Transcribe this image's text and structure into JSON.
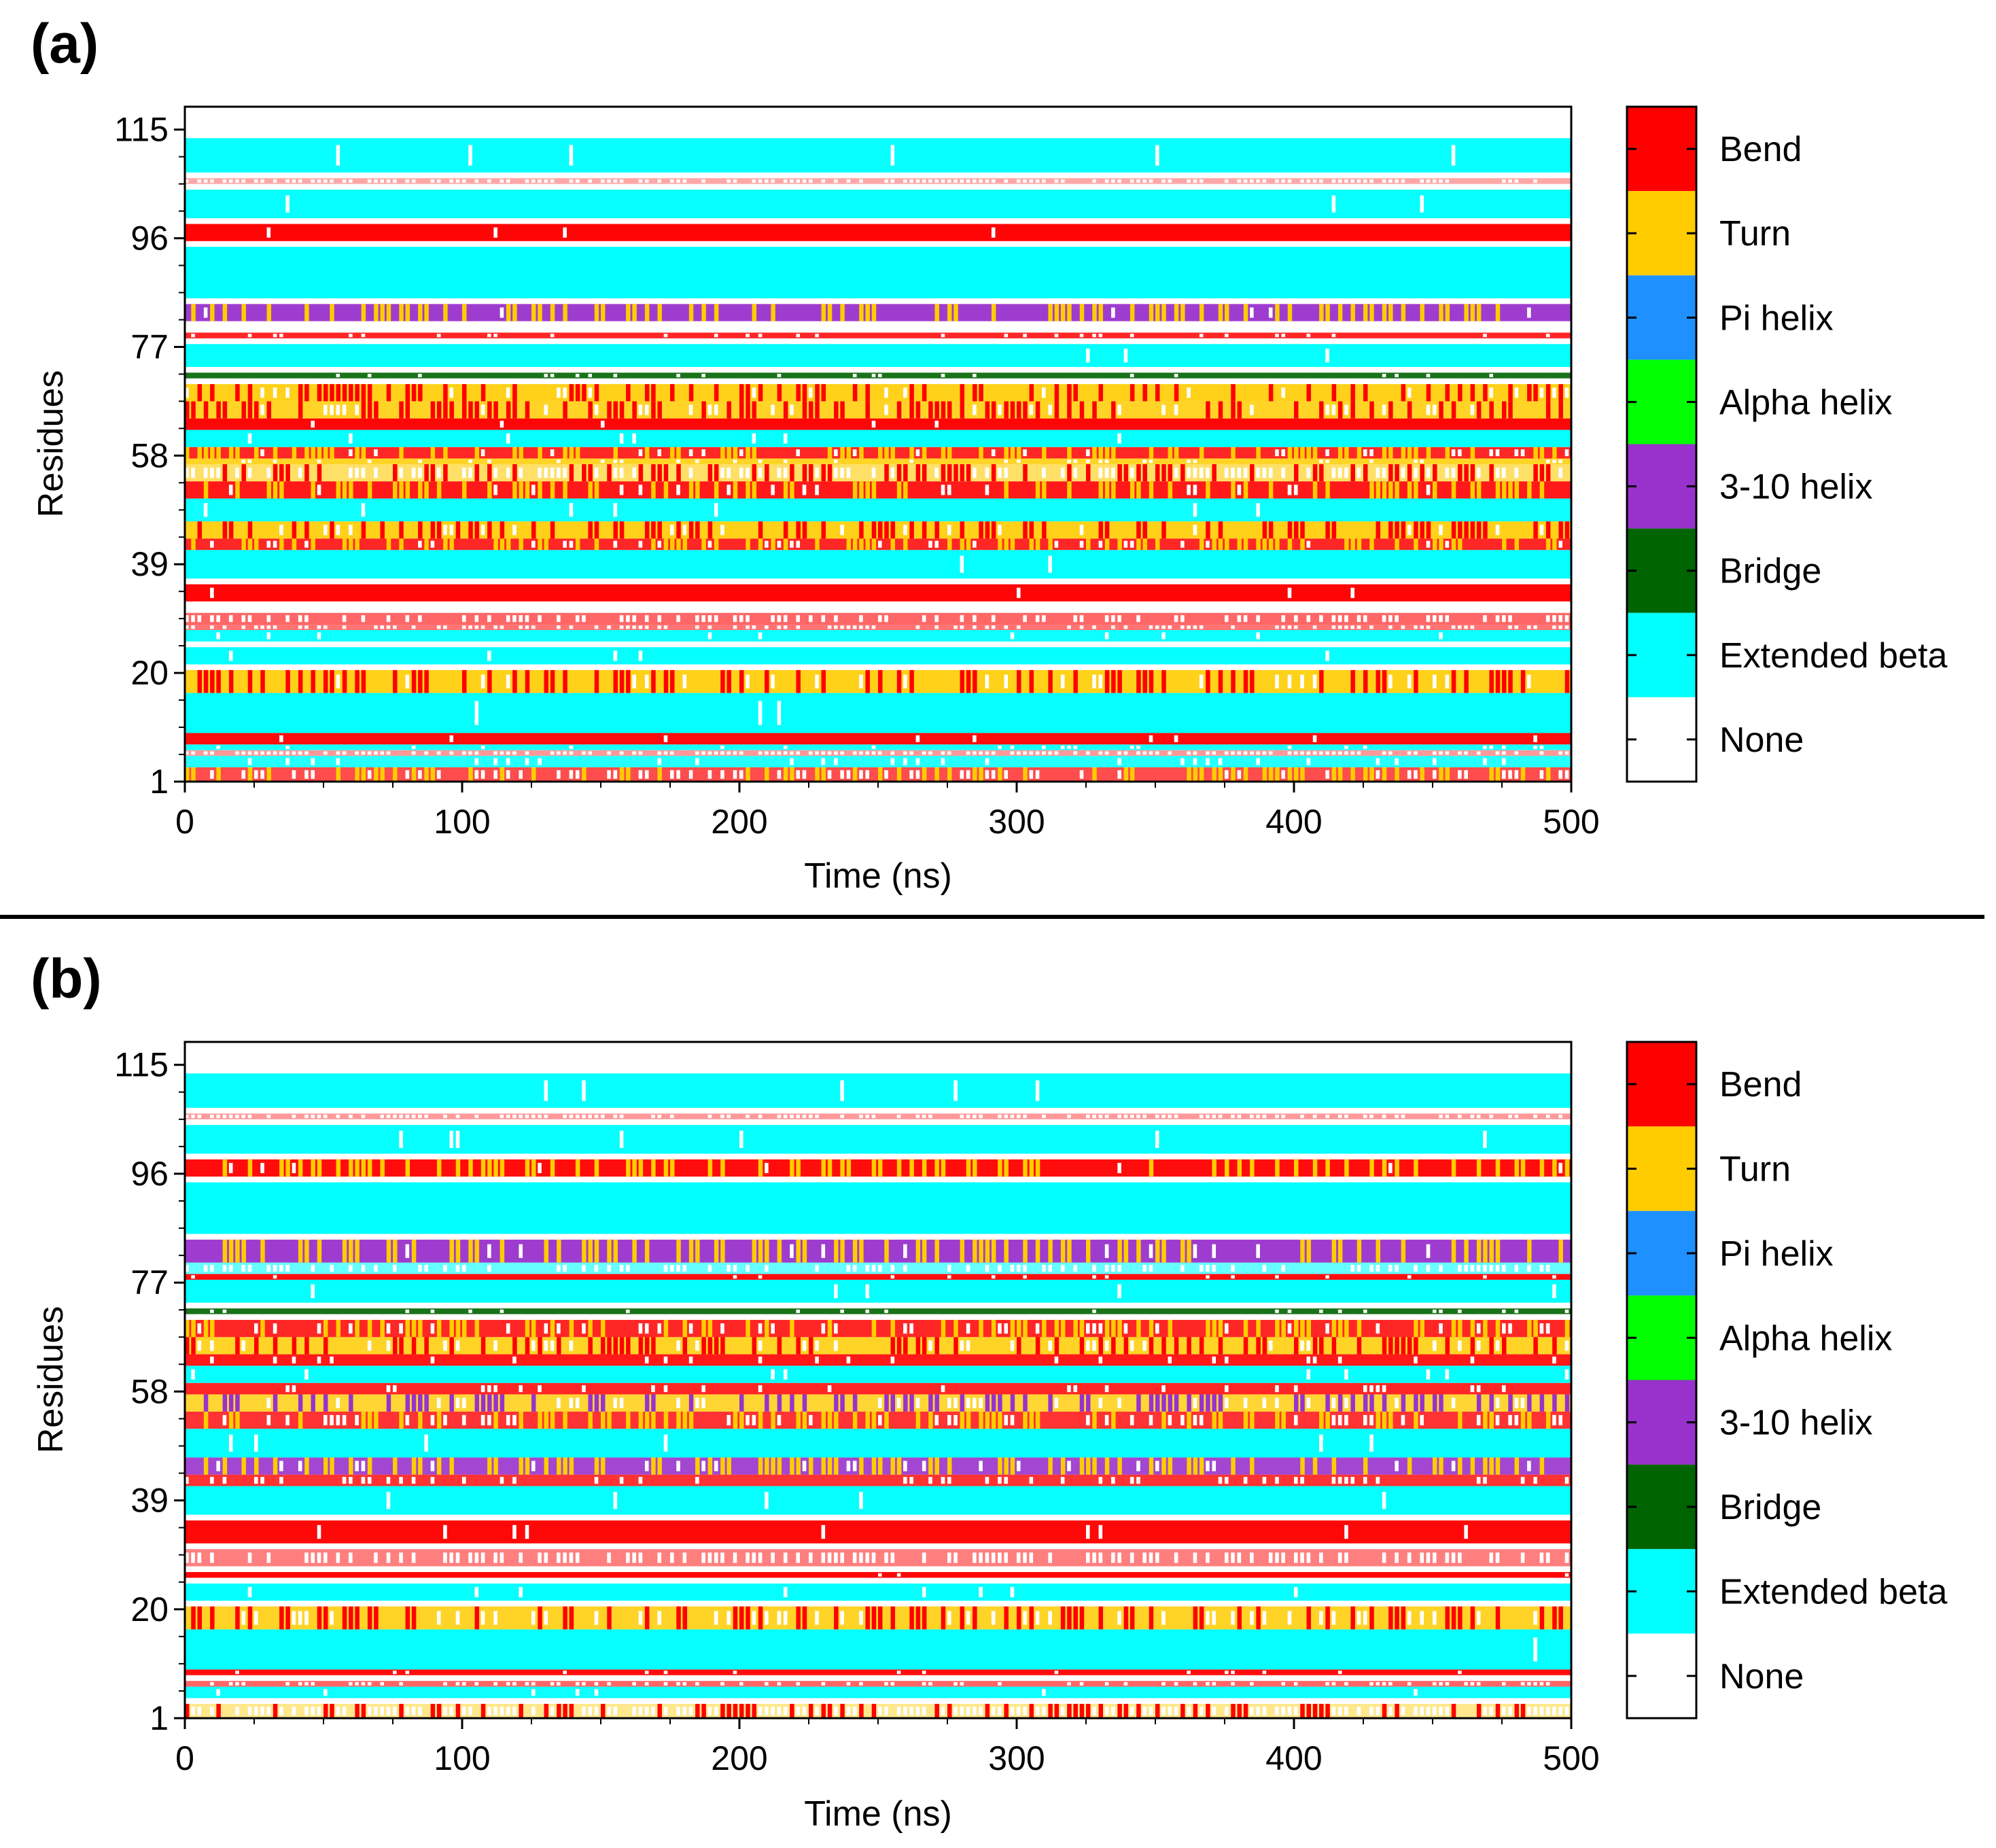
{
  "chart_data": [
    {
      "panel_label": "(a)",
      "type": "heatmap",
      "title": "",
      "xlabel": "Time (ns)",
      "ylabel": "Residues",
      "xlim": [
        0,
        500
      ],
      "ylim": [
        1,
        119
      ],
      "x_ticks": [
        "0",
        "100",
        "200",
        "300",
        "400",
        "500"
      ],
      "y_ticks": [
        "1",
        "20",
        "39",
        "58",
        "77",
        "96",
        "115"
      ],
      "legend": [
        "Bend",
        "Turn",
        "Pi helix",
        "Alpha helix",
        "3-10 helix",
        "Bridge",
        "Extended beta",
        "None"
      ],
      "bands": [
        {
          "from": 1,
          "to": 3,
          "state": "Bend",
          "density": 0.7,
          "mix": "Turn"
        },
        {
          "from": 4,
          "to": 5,
          "state": "Extended beta",
          "density": 0.85
        },
        {
          "from": 6,
          "to": 6,
          "state": "Bend",
          "density": 0.4
        },
        {
          "from": 7,
          "to": 7,
          "state": "Extended beta",
          "density": 0.9
        },
        {
          "from": 8,
          "to": 9,
          "state": "Bend",
          "density": 0.95
        },
        {
          "from": 10,
          "to": 16,
          "state": "Extended beta",
          "density": 0.98
        },
        {
          "from": 17,
          "to": 20,
          "state": "Turn",
          "density": 0.9,
          "mix": "Bend"
        },
        {
          "from": 21,
          "to": 21,
          "state": "None",
          "density": 0
        },
        {
          "from": 22,
          "to": 24,
          "state": "Extended beta",
          "density": 0.98
        },
        {
          "from": 25,
          "to": 25,
          "state": "None",
          "density": 0
        },
        {
          "from": 26,
          "to": 27,
          "state": "Extended beta",
          "density": 0.95
        },
        {
          "from": 28,
          "to": 28,
          "state": "Bend",
          "density": 0.55
        },
        {
          "from": 29,
          "to": 30,
          "state": "Bend",
          "density": 0.6
        },
        {
          "from": 31,
          "to": 32,
          "state": "None",
          "density": 0
        },
        {
          "from": 33,
          "to": 35,
          "state": "Bend",
          "density": 0.98
        },
        {
          "from": 36,
          "to": 36,
          "state": "None",
          "density": 0
        },
        {
          "from": 37,
          "to": 41,
          "state": "Extended beta",
          "density": 0.98
        },
        {
          "from": 42,
          "to": 43,
          "state": "Bend",
          "density": 0.85,
          "mix": "Turn"
        },
        {
          "from": 44,
          "to": 46,
          "state": "Turn",
          "density": 0.9,
          "mix": "Bend"
        },
        {
          "from": 47,
          "to": 50,
          "state": "Extended beta",
          "density": 0.95
        },
        {
          "from": 51,
          "to": 53,
          "state": "Bend",
          "density": 0.9,
          "mix": "Turn"
        },
        {
          "from": 54,
          "to": 56,
          "state": "Turn",
          "density": 0.6,
          "mix": "Bend"
        },
        {
          "from": 57,
          "to": 57,
          "state": "Turn",
          "density": 0.85
        },
        {
          "from": 58,
          "to": 59,
          "state": "Bend",
          "density": 0.85,
          "mix": "Turn"
        },
        {
          "from": 60,
          "to": 62,
          "state": "Extended beta",
          "density": 0.98
        },
        {
          "from": 63,
          "to": 64,
          "state": "Bend",
          "density": 0.98
        },
        {
          "from": 65,
          "to": 67,
          "state": "Turn",
          "density": 0.85,
          "mix": "Bend"
        },
        {
          "from": 68,
          "to": 70,
          "state": "Turn",
          "density": 0.9,
          "mix": "Bend"
        },
        {
          "from": 71,
          "to": 71,
          "state": "None",
          "density": 0
        },
        {
          "from": 72,
          "to": 72,
          "state": "Bridge",
          "density": 0.9
        },
        {
          "from": 73,
          "to": 73,
          "state": "None",
          "density": 0
        },
        {
          "from": 74,
          "to": 77,
          "state": "Extended beta",
          "density": 0.98
        },
        {
          "from": 78,
          "to": 78,
          "state": "None",
          "density": 0
        },
        {
          "from": 79,
          "to": 79,
          "state": "Bend",
          "density": 0.85
        },
        {
          "from": 80,
          "to": 81,
          "state": "None",
          "density": 0
        },
        {
          "from": 82,
          "to": 84,
          "state": "3-10 helix",
          "density": 0.95,
          "mix": "Turn"
        },
        {
          "from": 85,
          "to": 85,
          "state": "None",
          "density": 0
        },
        {
          "from": 86,
          "to": 94,
          "state": "Extended beta",
          "density": 1
        },
        {
          "from": 95,
          "to": 95,
          "state": "None",
          "density": 0
        },
        {
          "from": 96,
          "to": 98,
          "state": "Bend",
          "density": 0.98
        },
        {
          "from": 99,
          "to": 99,
          "state": "None",
          "density": 0
        },
        {
          "from": 100,
          "to": 104,
          "state": "Extended beta",
          "density": 0.98
        },
        {
          "from": 105,
          "to": 105,
          "state": "None",
          "density": 0
        },
        {
          "from": 106,
          "to": 106,
          "state": "Bend",
          "density": 0.35
        },
        {
          "from": 107,
          "to": 107,
          "state": "None",
          "density": 0
        },
        {
          "from": 108,
          "to": 113,
          "state": "Extended beta",
          "density": 0.97
        },
        {
          "from": 114,
          "to": 116,
          "state": "None",
          "density": 0
        }
      ]
    },
    {
      "panel_label": "(b)",
      "type": "heatmap",
      "title": "",
      "xlabel": "Time (ns)",
      "ylabel": "Residues",
      "xlim": [
        0,
        500
      ],
      "ylim": [
        1,
        119
      ],
      "x_ticks": [
        "0",
        "100",
        "200",
        "300",
        "400",
        "500"
      ],
      "y_ticks": [
        "1",
        "20",
        "39",
        "58",
        "77",
        "96",
        "115"
      ],
      "legend": [
        "Bend",
        "Turn",
        "Pi helix",
        "Alpha helix",
        "3-10 helix",
        "Bridge",
        "Extended beta",
        "None"
      ],
      "bands": [
        {
          "from": 1,
          "to": 3,
          "state": "Turn",
          "density": 0.45,
          "mix": "Bend"
        },
        {
          "from": 4,
          "to": 4,
          "state": "None",
          "density": 0
        },
        {
          "from": 5,
          "to": 6,
          "state": "Extended beta",
          "density": 0.95
        },
        {
          "from": 7,
          "to": 7,
          "state": "Bend",
          "density": 0.6
        },
        {
          "from": 8,
          "to": 8,
          "state": "None",
          "density": 0
        },
        {
          "from": 9,
          "to": 9,
          "state": "Bend",
          "density": 0.95
        },
        {
          "from": 10,
          "to": 16,
          "state": "Extended beta",
          "density": 0.98
        },
        {
          "from": 17,
          "to": 20,
          "state": "Turn",
          "density": 0.85,
          "mix": "Bend"
        },
        {
          "from": 21,
          "to": 21,
          "state": "None",
          "density": 0
        },
        {
          "from": 22,
          "to": 24,
          "state": "Extended beta",
          "density": 0.98
        },
        {
          "from": 25,
          "to": 25,
          "state": "None",
          "density": 0
        },
        {
          "from": 26,
          "to": 26,
          "state": "Bend",
          "density": 0.98
        },
        {
          "from": 27,
          "to": 27,
          "state": "None",
          "density": 0
        },
        {
          "from": 28,
          "to": 30,
          "state": "Bend",
          "density": 0.5
        },
        {
          "from": 31,
          "to": 31,
          "state": "None",
          "density": 0
        },
        {
          "from": 32,
          "to": 35,
          "state": "Bend",
          "density": 0.97
        },
        {
          "from": 36,
          "to": 36,
          "state": "None",
          "density": 0
        },
        {
          "from": 37,
          "to": 41,
          "state": "Extended beta",
          "density": 0.98
        },
        {
          "from": 42,
          "to": 43,
          "state": "Bend",
          "density": 0.8
        },
        {
          "from": 44,
          "to": 46,
          "state": "3-10 helix",
          "density": 0.9,
          "mix": "Turn"
        },
        {
          "from": 47,
          "to": 51,
          "state": "Extended beta",
          "density": 0.97
        },
        {
          "from": 52,
          "to": 54,
          "state": "Bend",
          "density": 0.8,
          "mix": "Turn"
        },
        {
          "from": 55,
          "to": 57,
          "state": "Turn",
          "density": 0.8,
          "mix": "3-10 helix"
        },
        {
          "from": 58,
          "to": 59,
          "state": "Bend",
          "density": 0.85
        },
        {
          "from": 60,
          "to": 62,
          "state": "Extended beta",
          "density": 0.97
        },
        {
          "from": 63,
          "to": 64,
          "state": "Bend",
          "density": 0.9
        },
        {
          "from": 65,
          "to": 67,
          "state": "Turn",
          "density": 0.85,
          "mix": "Bend"
        },
        {
          "from": 68,
          "to": 70,
          "state": "Bend",
          "density": 0.85,
          "mix": "Turn"
        },
        {
          "from": 71,
          "to": 71,
          "state": "None",
          "density": 0
        },
        {
          "from": 72,
          "to": 72,
          "state": "Bridge",
          "density": 0.9
        },
        {
          "from": 73,
          "to": 73,
          "state": "None",
          "density": 0
        },
        {
          "from": 74,
          "to": 77,
          "state": "Extended beta",
          "density": 0.98
        },
        {
          "from": 78,
          "to": 78,
          "state": "Bend",
          "density": 0.95
        },
        {
          "from": 79,
          "to": 80,
          "state": "Extended beta",
          "density": 0.6
        },
        {
          "from": 81,
          "to": 84,
          "state": "3-10 helix",
          "density": 0.95,
          "mix": "Turn"
        },
        {
          "from": 85,
          "to": 85,
          "state": "None",
          "density": 0
        },
        {
          "from": 86,
          "to": 94,
          "state": "Extended beta",
          "density": 1
        },
        {
          "from": 95,
          "to": 95,
          "state": "None",
          "density": 0
        },
        {
          "from": 96,
          "to": 98,
          "state": "Bend",
          "density": 0.95,
          "mix": "Turn"
        },
        {
          "from": 99,
          "to": 99,
          "state": "None",
          "density": 0
        },
        {
          "from": 100,
          "to": 104,
          "state": "Extended beta",
          "density": 0.98
        },
        {
          "from": 105,
          "to": 105,
          "state": "None",
          "density": 0
        },
        {
          "from": 106,
          "to": 106,
          "state": "Bend",
          "density": 0.4
        },
        {
          "from": 107,
          "to": 107,
          "state": "None",
          "density": 0
        },
        {
          "from": 108,
          "to": 113,
          "state": "Extended beta",
          "density": 0.97
        },
        {
          "from": 114,
          "to": 116,
          "state": "None",
          "density": 0
        }
      ]
    }
  ],
  "colors": {
    "Bend": "#ff0000",
    "Turn": "#ffcc00",
    "Pi helix": "#1e90ff",
    "Alpha helix": "#00ff00",
    "3-10 helix": "#9932cc",
    "Bridge": "#006400",
    "Extended beta": "#00ffff",
    "None": "#ffffff"
  }
}
